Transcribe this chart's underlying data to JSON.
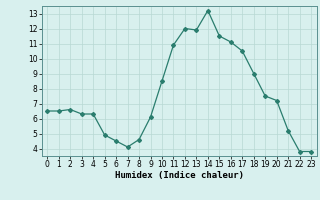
{
  "x": [
    0,
    1,
    2,
    3,
    4,
    5,
    6,
    7,
    8,
    9,
    10,
    11,
    12,
    13,
    14,
    15,
    16,
    17,
    18,
    19,
    20,
    21,
    22,
    23
  ],
  "y": [
    6.5,
    6.5,
    6.6,
    6.3,
    6.3,
    4.9,
    4.5,
    4.1,
    4.6,
    6.1,
    8.5,
    10.9,
    12.0,
    11.9,
    13.2,
    11.5,
    11.1,
    10.5,
    9.0,
    7.5,
    7.2,
    5.2,
    3.8,
    3.8
  ],
  "line_color": "#2a7d6e",
  "marker": "D",
  "marker_size": 2.0,
  "bg_color": "#d8f0ee",
  "grid_color_major": "#b8d8d4",
  "grid_color_minor": "#cce6e3",
  "xlabel": "Humidex (Indice chaleur)",
  "ylim": [
    3.5,
    13.5
  ],
  "xlim": [
    -0.5,
    23.5
  ],
  "yticks": [
    4,
    5,
    6,
    7,
    8,
    9,
    10,
    11,
    12,
    13
  ],
  "xticks": [
    0,
    1,
    2,
    3,
    4,
    5,
    6,
    7,
    8,
    9,
    10,
    11,
    12,
    13,
    14,
    15,
    16,
    17,
    18,
    19,
    20,
    21,
    22,
    23
  ],
  "xlabel_fontsize": 6.5,
  "tick_fontsize": 5.5,
  "line_width": 0.9
}
